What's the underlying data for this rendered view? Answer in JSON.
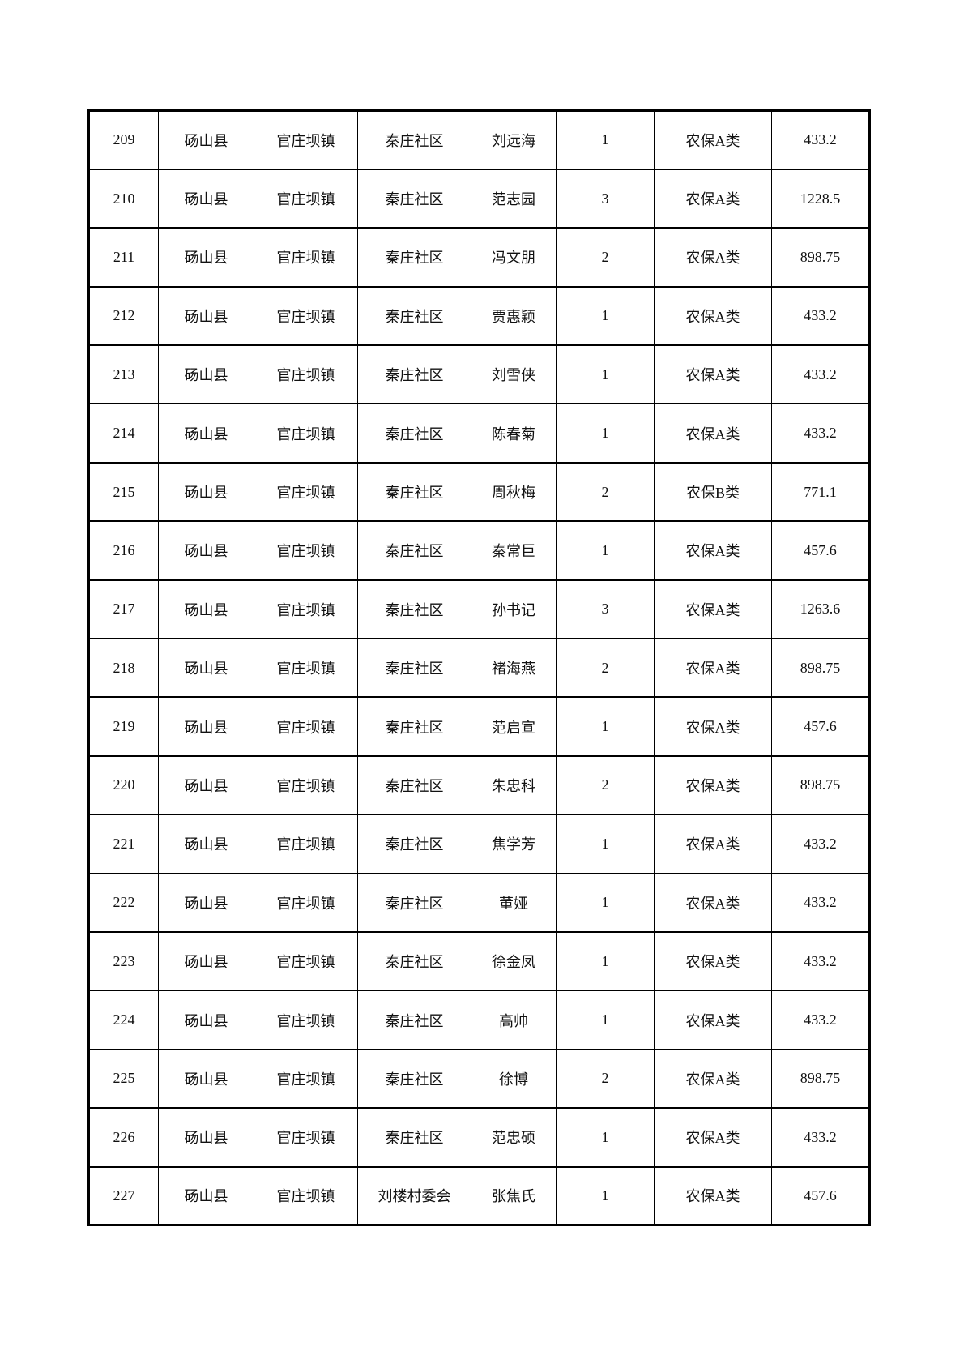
{
  "page": {
    "background": "#ffffff",
    "text_color": "#111111",
    "border_color": "#000000"
  },
  "table": {
    "columns_semantics": [
      "row-number",
      "county",
      "town",
      "community",
      "person-name",
      "person-count",
      "insurance-category",
      "amount"
    ],
    "rows": [
      [
        "209",
        "砀山县",
        "官庄坝镇",
        "秦庄社区",
        "刘远海",
        "1",
        "农保A类",
        "433.2"
      ],
      [
        "210",
        "砀山县",
        "官庄坝镇",
        "秦庄社区",
        "范志园",
        "3",
        "农保A类",
        "1228.5"
      ],
      [
        "211",
        "砀山县",
        "官庄坝镇",
        "秦庄社区",
        "冯文朋",
        "2",
        "农保A类",
        "898.75"
      ],
      [
        "212",
        "砀山县",
        "官庄坝镇",
        "秦庄社区",
        "贾惠颖",
        "1",
        "农保A类",
        "433.2"
      ],
      [
        "213",
        "砀山县",
        "官庄坝镇",
        "秦庄社区",
        "刘雪侠",
        "1",
        "农保A类",
        "433.2"
      ],
      [
        "214",
        "砀山县",
        "官庄坝镇",
        "秦庄社区",
        "陈春菊",
        "1",
        "农保A类",
        "433.2"
      ],
      [
        "215",
        "砀山县",
        "官庄坝镇",
        "秦庄社区",
        "周秋梅",
        "2",
        "农保B类",
        "771.1"
      ],
      [
        "216",
        "砀山县",
        "官庄坝镇",
        "秦庄社区",
        "秦常巨",
        "1",
        "农保A类",
        "457.6"
      ],
      [
        "217",
        "砀山县",
        "官庄坝镇",
        "秦庄社区",
        "孙书记",
        "3",
        "农保A类",
        "1263.6"
      ],
      [
        "218",
        "砀山县",
        "官庄坝镇",
        "秦庄社区",
        "褚海燕",
        "2",
        "农保A类",
        "898.75"
      ],
      [
        "219",
        "砀山县",
        "官庄坝镇",
        "秦庄社区",
        "范启宣",
        "1",
        "农保A类",
        "457.6"
      ],
      [
        "220",
        "砀山县",
        "官庄坝镇",
        "秦庄社区",
        "朱忠科",
        "2",
        "农保A类",
        "898.75"
      ],
      [
        "221",
        "砀山县",
        "官庄坝镇",
        "秦庄社区",
        "焦学芳",
        "1",
        "农保A类",
        "433.2"
      ],
      [
        "222",
        "砀山县",
        "官庄坝镇",
        "秦庄社区",
        "董娅",
        "1",
        "农保A类",
        "433.2"
      ],
      [
        "223",
        "砀山县",
        "官庄坝镇",
        "秦庄社区",
        "徐金凤",
        "1",
        "农保A类",
        "433.2"
      ],
      [
        "224",
        "砀山县",
        "官庄坝镇",
        "秦庄社区",
        "高帅",
        "1",
        "农保A类",
        "433.2"
      ],
      [
        "225",
        "砀山县",
        "官庄坝镇",
        "秦庄社区",
        "徐博",
        "2",
        "农保A类",
        "898.75"
      ],
      [
        "226",
        "砀山县",
        "官庄坝镇",
        "秦庄社区",
        "范忠硕",
        "1",
        "农保A类",
        "433.2"
      ],
      [
        "227",
        "砀山县",
        "官庄坝镇",
        "刘楼村委会",
        "张焦氏",
        "1",
        "农保A类",
        "457.6"
      ]
    ]
  }
}
